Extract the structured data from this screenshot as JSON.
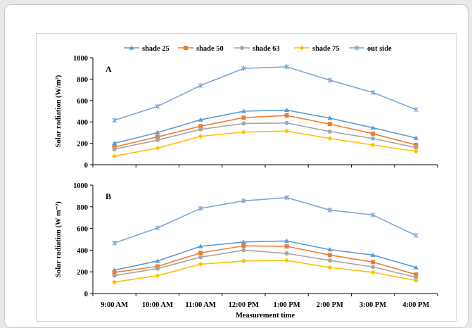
{
  "chart_data": [
    {
      "type": "line",
      "panel_label": "A",
      "ylabel": "Solar radiation (W/m²)",
      "ylim": [
        0,
        1000
      ],
      "yticks": [
        "0",
        "200",
        "400",
        "600",
        "800",
        "1000"
      ],
      "categories": [
        "9:00 AM",
        "10:00 AM",
        "11:00 AM",
        "12:00 PM",
        "1:00 PM",
        "2:00 PM",
        "3:00 PM",
        "4:00 PM"
      ],
      "grid": false,
      "legend": "top",
      "series": [
        {
          "name": "shade 25",
          "color": "#5b9bd5",
          "marker": "triangle",
          "values": [
            200,
            300,
            420,
            500,
            510,
            435,
            345,
            250
          ]
        },
        {
          "name": "shade 50",
          "color": "#ed7d31",
          "marker": "square",
          "values": [
            165,
            260,
            360,
            440,
            460,
            380,
            290,
            185
          ]
        },
        {
          "name": "shade 63",
          "color": "#a5a5a5",
          "marker": "circle",
          "values": [
            145,
            230,
            330,
            385,
            390,
            310,
            245,
            160
          ]
        },
        {
          "name": "shade 75",
          "color": "#ffc000",
          "marker": "diamond",
          "values": [
            80,
            155,
            265,
            305,
            315,
            245,
            185,
            125
          ]
        },
        {
          "name": "out side",
          "color": "#7ea6d9",
          "marker": "star",
          "values": [
            415,
            545,
            740,
            900,
            915,
            790,
            675,
            515
          ]
        }
      ]
    },
    {
      "type": "line",
      "panel_label": "B",
      "ylabel": "Solar radiation (W m⁻²)",
      "xlabel": "Measurement time",
      "ylim": [
        0,
        1000
      ],
      "yticks": [
        "0",
        "200",
        "400",
        "600",
        "800",
        "1000"
      ],
      "categories": [
        "9:00 AM",
        "10:00 AM",
        "11:00 AM",
        "12:00 PM",
        "1:00 PM",
        "2:00 PM",
        "3:00 PM",
        "4:00 PM"
      ],
      "grid": false,
      "series": [
        {
          "name": "shade 25",
          "color": "#5b9bd5",
          "marker": "triangle",
          "values": [
            215,
            300,
            435,
            475,
            485,
            405,
            355,
            240
          ]
        },
        {
          "name": "shade 50",
          "color": "#ed7d31",
          "marker": "square",
          "values": [
            195,
            250,
            375,
            440,
            435,
            355,
            290,
            175
          ]
        },
        {
          "name": "shade 63",
          "color": "#a5a5a5",
          "marker": "circle",
          "values": [
            165,
            230,
            335,
            400,
            370,
            305,
            245,
            150
          ]
        },
        {
          "name": "shade 75",
          "color": "#ffc000",
          "marker": "diamond",
          "values": [
            105,
            165,
            270,
            300,
            305,
            240,
            195,
            120
          ]
        },
        {
          "name": "out side",
          "color": "#7ea6d9",
          "marker": "star",
          "values": [
            465,
            605,
            785,
            855,
            885,
            770,
            725,
            535
          ]
        }
      ]
    }
  ]
}
